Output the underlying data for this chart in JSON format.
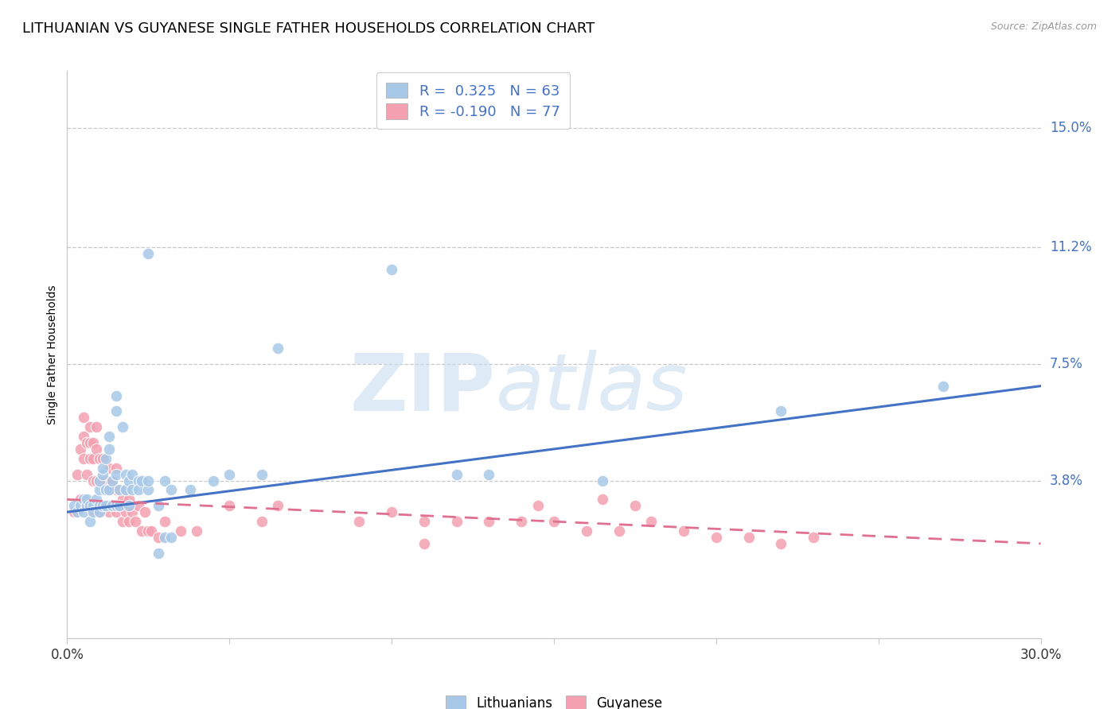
{
  "title": "LITHUANIAN VS GUYANESE SINGLE FATHER HOUSEHOLDS CORRELATION CHART",
  "source": "Source: ZipAtlas.com",
  "ylabel": "Single Father Households",
  "ytick_labels": [
    "15.0%",
    "11.2%",
    "7.5%",
    "3.8%"
  ],
  "ytick_values": [
    0.15,
    0.112,
    0.075,
    0.038
  ],
  "xlim": [
    0.0,
    0.3
  ],
  "ylim": [
    -0.012,
    0.168
  ],
  "legend_r_values": [
    "0.325",
    "-0.190"
  ],
  "legend_n_values": [
    "63",
    "77"
  ],
  "blue_color": "#a8c8e8",
  "pink_color": "#f4a0b0",
  "blue_line_color": "#4472c4",
  "pink_line_color": "#e07090",
  "watermark_zip": "ZIP",
  "watermark_atlas": "atlas",
  "background_color": "#ffffff",
  "grid_color": "#c8c8c8",
  "title_fontsize": 13,
  "axis_label_fontsize": 10,
  "blue_scatter": [
    [
      0.002,
      0.03
    ],
    [
      0.003,
      0.028
    ],
    [
      0.004,
      0.03
    ],
    [
      0.005,
      0.032
    ],
    [
      0.005,
      0.028
    ],
    [
      0.006,
      0.03
    ],
    [
      0.006,
      0.032
    ],
    [
      0.007,
      0.03
    ],
    [
      0.007,
      0.025
    ],
    [
      0.008,
      0.03
    ],
    [
      0.008,
      0.028
    ],
    [
      0.009,
      0.032
    ],
    [
      0.01,
      0.03
    ],
    [
      0.01,
      0.028
    ],
    [
      0.01,
      0.035
    ],
    [
      0.01,
      0.038
    ],
    [
      0.011,
      0.03
    ],
    [
      0.011,
      0.04
    ],
    [
      0.011,
      0.042
    ],
    [
      0.012,
      0.03
    ],
    [
      0.012,
      0.035
    ],
    [
      0.012,
      0.045
    ],
    [
      0.013,
      0.035
    ],
    [
      0.013,
      0.048
    ],
    [
      0.013,
      0.052
    ],
    [
      0.014,
      0.03
    ],
    [
      0.014,
      0.038
    ],
    [
      0.015,
      0.03
    ],
    [
      0.015,
      0.04
    ],
    [
      0.015,
      0.06
    ],
    [
      0.015,
      0.065
    ],
    [
      0.016,
      0.03
    ],
    [
      0.016,
      0.035
    ],
    [
      0.017,
      0.055
    ],
    [
      0.018,
      0.035
    ],
    [
      0.018,
      0.04
    ],
    [
      0.019,
      0.03
    ],
    [
      0.019,
      0.038
    ],
    [
      0.02,
      0.035
    ],
    [
      0.02,
      0.04
    ],
    [
      0.022,
      0.038
    ],
    [
      0.022,
      0.035
    ],
    [
      0.023,
      0.038
    ],
    [
      0.025,
      0.035
    ],
    [
      0.025,
      0.038
    ],
    [
      0.025,
      0.11
    ],
    [
      0.028,
      0.03
    ],
    [
      0.028,
      0.015
    ],
    [
      0.03,
      0.038
    ],
    [
      0.03,
      0.02
    ],
    [
      0.032,
      0.035
    ],
    [
      0.032,
      0.02
    ],
    [
      0.038,
      0.035
    ],
    [
      0.045,
      0.038
    ],
    [
      0.05,
      0.04
    ],
    [
      0.06,
      0.04
    ],
    [
      0.065,
      0.08
    ],
    [
      0.1,
      0.105
    ],
    [
      0.12,
      0.04
    ],
    [
      0.13,
      0.04
    ],
    [
      0.165,
      0.038
    ],
    [
      0.22,
      0.06
    ],
    [
      0.27,
      0.068
    ]
  ],
  "pink_scatter": [
    [
      0.002,
      0.028
    ],
    [
      0.003,
      0.04
    ],
    [
      0.004,
      0.032
    ],
    [
      0.004,
      0.048
    ],
    [
      0.005,
      0.045
    ],
    [
      0.005,
      0.052
    ],
    [
      0.005,
      0.058
    ],
    [
      0.006,
      0.03
    ],
    [
      0.006,
      0.04
    ],
    [
      0.006,
      0.05
    ],
    [
      0.007,
      0.045
    ],
    [
      0.007,
      0.05
    ],
    [
      0.007,
      0.055
    ],
    [
      0.008,
      0.028
    ],
    [
      0.008,
      0.038
    ],
    [
      0.008,
      0.045
    ],
    [
      0.008,
      0.05
    ],
    [
      0.009,
      0.03
    ],
    [
      0.009,
      0.038
    ],
    [
      0.009,
      0.048
    ],
    [
      0.009,
      0.055
    ],
    [
      0.01,
      0.028
    ],
    [
      0.01,
      0.038
    ],
    [
      0.01,
      0.045
    ],
    [
      0.011,
      0.03
    ],
    [
      0.011,
      0.038
    ],
    [
      0.011,
      0.045
    ],
    [
      0.012,
      0.038
    ],
    [
      0.012,
      0.03
    ],
    [
      0.013,
      0.028
    ],
    [
      0.013,
      0.035
    ],
    [
      0.013,
      0.042
    ],
    [
      0.014,
      0.03
    ],
    [
      0.014,
      0.038
    ],
    [
      0.015,
      0.028
    ],
    [
      0.015,
      0.035
    ],
    [
      0.015,
      0.042
    ],
    [
      0.016,
      0.03
    ],
    [
      0.017,
      0.025
    ],
    [
      0.017,
      0.032
    ],
    [
      0.018,
      0.028
    ],
    [
      0.018,
      0.035
    ],
    [
      0.019,
      0.025
    ],
    [
      0.019,
      0.032
    ],
    [
      0.02,
      0.028
    ],
    [
      0.021,
      0.025
    ],
    [
      0.022,
      0.03
    ],
    [
      0.023,
      0.022
    ],
    [
      0.024,
      0.028
    ],
    [
      0.025,
      0.022
    ],
    [
      0.026,
      0.022
    ],
    [
      0.028,
      0.02
    ],
    [
      0.03,
      0.025
    ],
    [
      0.035,
      0.022
    ],
    [
      0.04,
      0.022
    ],
    [
      0.05,
      0.03
    ],
    [
      0.06,
      0.025
    ],
    [
      0.065,
      0.03
    ],
    [
      0.09,
      0.025
    ],
    [
      0.1,
      0.028
    ],
    [
      0.11,
      0.025
    ],
    [
      0.11,
      0.018
    ],
    [
      0.12,
      0.025
    ],
    [
      0.13,
      0.025
    ],
    [
      0.14,
      0.025
    ],
    [
      0.145,
      0.03
    ],
    [
      0.15,
      0.025
    ],
    [
      0.16,
      0.022
    ],
    [
      0.165,
      0.032
    ],
    [
      0.17,
      0.022
    ],
    [
      0.175,
      0.03
    ],
    [
      0.18,
      0.025
    ],
    [
      0.19,
      0.022
    ],
    [
      0.2,
      0.02
    ],
    [
      0.21,
      0.02
    ],
    [
      0.22,
      0.018
    ],
    [
      0.23,
      0.02
    ]
  ],
  "blue_trend": {
    "x_start": 0.0,
    "y_start": 0.028,
    "x_end": 0.3,
    "y_end": 0.068
  },
  "pink_trend": {
    "x_start": 0.0,
    "y_start": 0.032,
    "x_end": 0.3,
    "y_end": 0.018
  }
}
